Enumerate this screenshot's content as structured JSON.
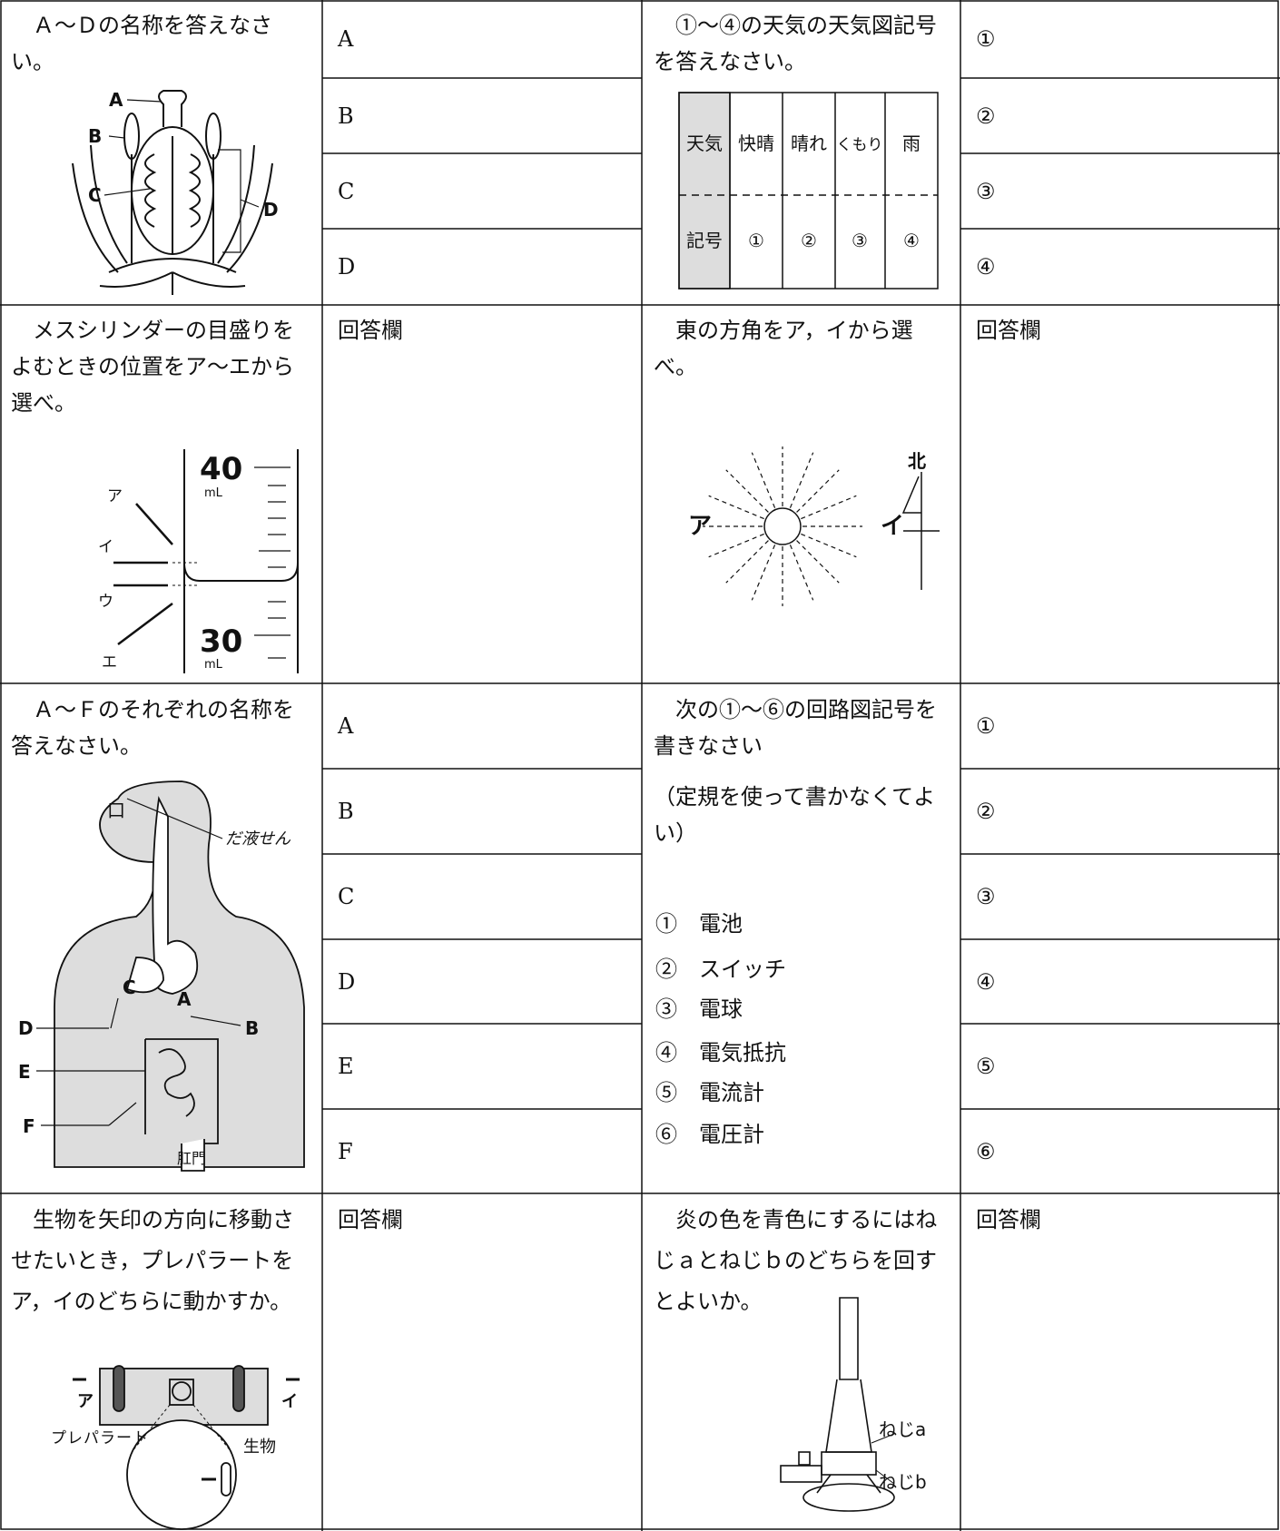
{
  "q1": {
    "prompt": "Ａ～Ｄの名称を答えなさい。",
    "figure_labels": [
      "A",
      "B",
      "C",
      "D"
    ],
    "answers": [
      "A",
      "B",
      "C",
      "D"
    ]
  },
  "q2": {
    "prompt": "①～④の天気の天気図記号を答えなさい。",
    "table": {
      "headers": [
        "天気",
        "記号"
      ],
      "weather": [
        "快晴",
        "晴れ",
        "くもり",
        "雨"
      ],
      "symbols": [
        "①",
        "②",
        "③",
        "④"
      ]
    },
    "answers": [
      "①",
      "②",
      "③",
      "④"
    ]
  },
  "q3": {
    "prompt": "メスシリンダーの目盛りをよむときの位置をア～エから選べ。",
    "figure_labels": {
      "scale": [
        "40",
        "mL",
        "30",
        "mL"
      ],
      "eyes": [
        "ア",
        "イ",
        "ウ",
        "エ"
      ]
    },
    "answer": "回答欄"
  },
  "q4": {
    "prompt": "東の方角をア，イから選べ。",
    "figure_labels": [
      "ア",
      "イ",
      "北"
    ],
    "answer": "回答欄"
  },
  "q5": {
    "prompt": "Ａ～Ｆのそれぞれの名称を答えなさい。",
    "figure_labels": {
      "mouth": "口",
      "gland": "だ液せん",
      "parts": [
        "A",
        "B",
        "C",
        "D",
        "E",
        "F"
      ],
      "anus": "肛門"
    },
    "answers": [
      "A",
      "B",
      "C",
      "D",
      "E",
      "F"
    ]
  },
  "q6": {
    "prompt": "次の①～⑥の回路図記号を書きなさい",
    "note": "（定規を使って書かなくてよい）",
    "items": [
      "①　電池",
      "②　スイッチ",
      "③　電球",
      "④　電気抵抗",
      "⑤　電流計",
      "⑥　電圧計"
    ],
    "answers": [
      "①",
      "②",
      "③",
      "④",
      "⑤",
      "⑥"
    ]
  },
  "q7": {
    "prompt": "生物を矢印の方向に移動させたいとき，プレパラートをア，イのどちらに動かすか。",
    "figure_labels": {
      "left": "ア",
      "right": "イ",
      "slide": "プレパラート",
      "organism": "生物"
    },
    "answer": "回答欄"
  },
  "q8": {
    "prompt": "炎の色を青色にするにはねじａとねじｂのどちらを回すとよいか。",
    "figure_labels": [
      "ねじa",
      "ねじb"
    ],
    "answer": "回答欄"
  }
}
